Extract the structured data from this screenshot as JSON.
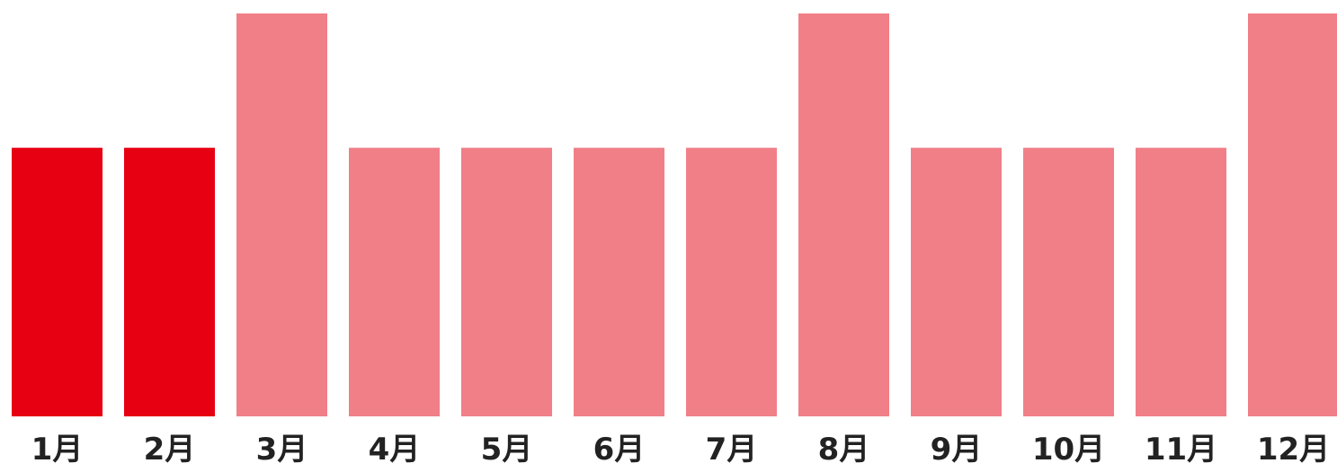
{
  "chart_data": {
    "type": "bar",
    "title": "",
    "xlabel": "",
    "ylabel": "",
    "categories": [
      "1月",
      "2月",
      "3月",
      "4月",
      "5月",
      "6月",
      "7月",
      "8月",
      "9月",
      "10月",
      "11月",
      "12月"
    ],
    "values": [
      2,
      2,
      3,
      2,
      2,
      2,
      2,
      3,
      2,
      2,
      2,
      3
    ],
    "highlighted": [
      true,
      true,
      false,
      false,
      false,
      false,
      false,
      false,
      false,
      false,
      false,
      false
    ],
    "ylim": [
      0,
      3
    ],
    "grid": false,
    "legend": "none",
    "colors": {
      "highlight": "#e60012",
      "normal": "#f07f88"
    }
  }
}
